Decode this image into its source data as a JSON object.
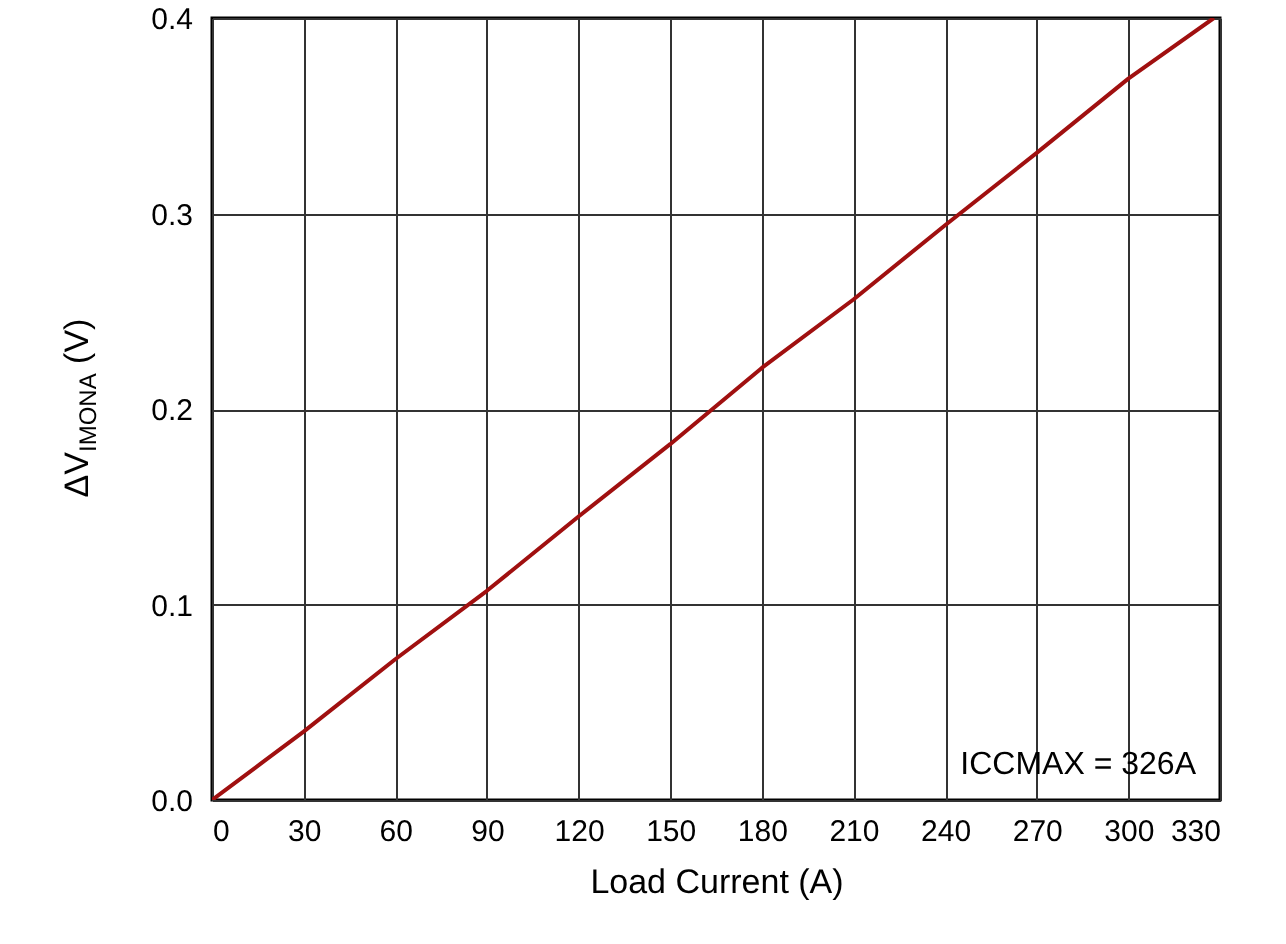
{
  "chart_data": {
    "type": "line",
    "xlabel": "Load Current (A)",
    "ylabel": "ΔV$_{IMONA}$ (V)",
    "x": [
      0,
      30,
      60,
      90,
      120,
      150,
      180,
      210,
      240,
      270,
      300,
      328
    ],
    "series": [
      {
        "color": "#a01010",
        "values": [
          0,
          0.035,
          0.072,
          0.107,
          0.145,
          0.182,
          0.221,
          0.256,
          0.294,
          0.331,
          0.369,
          0.4
        ]
      }
    ],
    "xlim": [
      0,
      330
    ],
    "xticks": [
      0,
      30,
      60,
      90,
      120,
      150,
      180,
      210,
      240,
      270,
      300,
      330
    ],
    "ylim": [
      0,
      0.4
    ],
    "yticks": [
      {
        "value": 0,
        "label": "0.0"
      },
      0.1,
      0.2,
      0.3,
      0.4
    ],
    "grid": true,
    "line_style": "solid",
    "annotations": [
      "ICCMAX = 326A"
    ]
  }
}
